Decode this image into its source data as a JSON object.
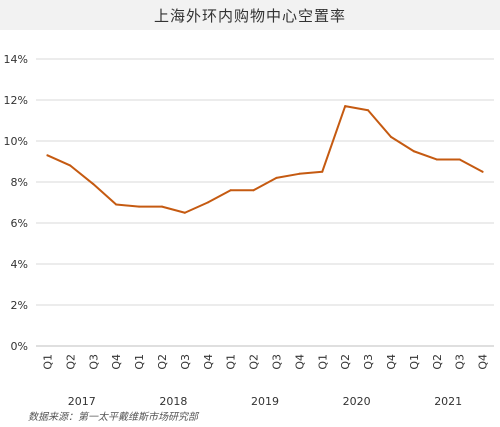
{
  "title": "上海外环内购物中心空置率",
  "source": "数据来源：第一太平戴维斯市场研究部",
  "colors": {
    "line": "#c55a11",
    "grid": "#d9d9d9",
    "axis": "#bfbfbf",
    "title_bg": "#f2f2f2"
  },
  "chart_data": {
    "type": "line",
    "title": "上海外环内购物中心空置率",
    "categories": [
      "Q1",
      "Q2",
      "Q3",
      "Q4",
      "Q1",
      "Q2",
      "Q3",
      "Q4",
      "Q1",
      "Q2",
      "Q3",
      "Q4",
      "Q1",
      "Q2",
      "Q3",
      "Q4",
      "Q1",
      "Q2",
      "Q3",
      "Q4"
    ],
    "years": [
      "2017",
      "2018",
      "2019",
      "2020",
      "2021"
    ],
    "series": [
      {
        "values": [
          9.3,
          8.8,
          7.9,
          6.9,
          6.8,
          6.8,
          6.5,
          7.0,
          7.6,
          7.6,
          8.2,
          8.4,
          8.5,
          11.7,
          11.5,
          10.2,
          9.5,
          9.1,
          9.1,
          8.5
        ]
      }
    ],
    "y_ticks": [
      "0%",
      "2%",
      "4%",
      "6%",
      "8%",
      "10%",
      "12%",
      "14%"
    ],
    "ylim": [
      0,
      14
    ],
    "grid": true,
    "legend": false
  }
}
